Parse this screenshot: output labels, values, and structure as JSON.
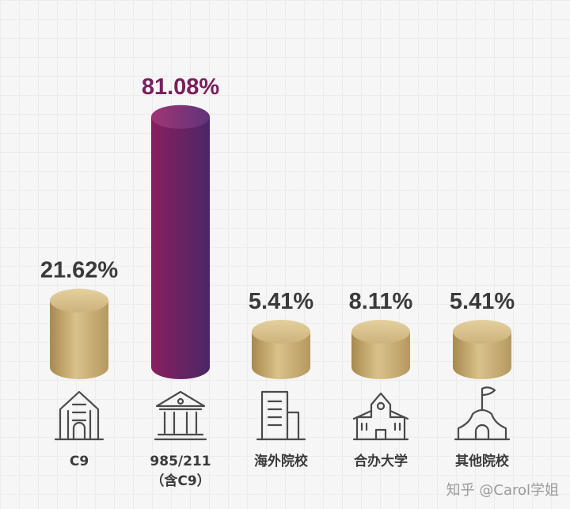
{
  "chart_data": {
    "type": "bar",
    "categories": [
      "C9",
      "985/211\n（含C9）",
      "海外院校",
      "合办大学",
      "其他院校"
    ],
    "values": [
      21.62,
      81.08,
      5.41,
      8.11,
      5.41
    ],
    "value_labels": [
      "21.62%",
      "81.08%",
      "5.41%",
      "8.11%",
      "5.41%"
    ],
    "highlight_index": 1,
    "ylim": [
      0,
      100
    ],
    "grid": false,
    "icons": [
      "office-building-icon",
      "university-icon",
      "office-tower-icon",
      "school-icon",
      "flag-tent-icon"
    ]
  },
  "colors": {
    "gold_light": "#d9c28a",
    "gold_dark": "#a8894e",
    "purple_start": "#8a1e5f",
    "purple_end": "#4a2766",
    "text": "#3a3a3a"
  },
  "watermark": "知乎 @Carol学姐"
}
